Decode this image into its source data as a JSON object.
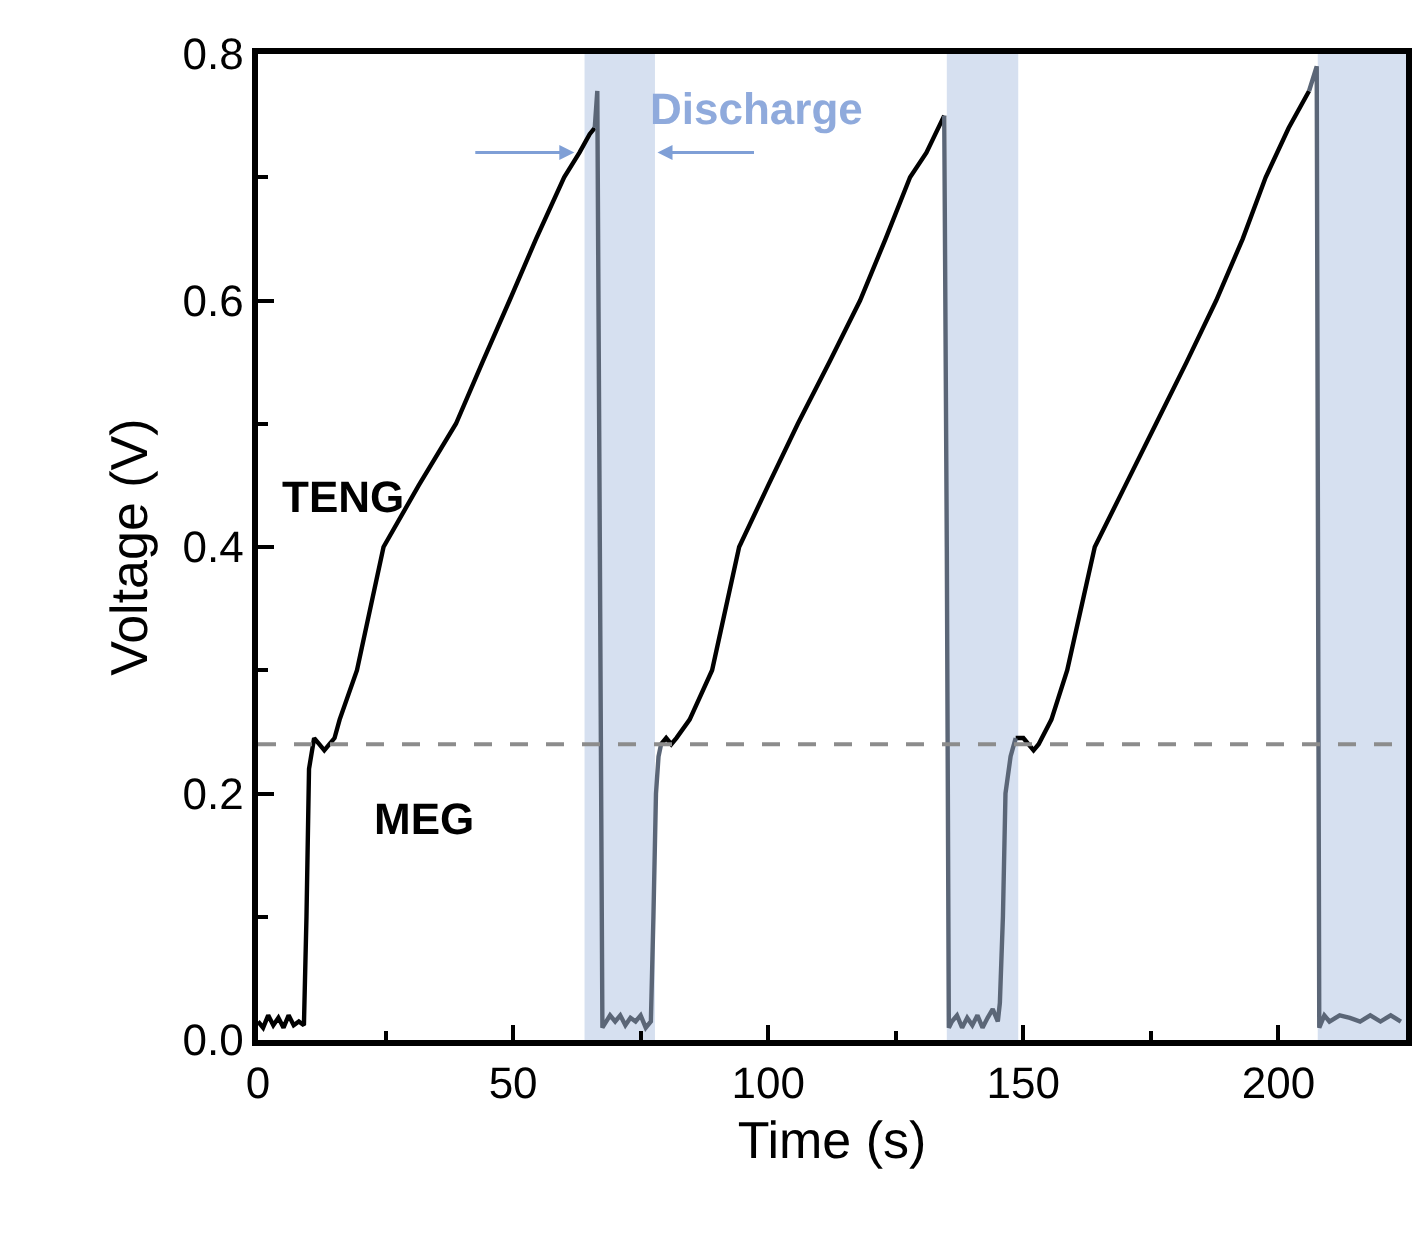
{
  "chart_data": {
    "type": "line",
    "xlabel": "Time (s)",
    "ylabel": "Voltage (V)",
    "xlim": [
      0,
      225
    ],
    "ylim": [
      0,
      0.8
    ],
    "xticks": [
      0,
      {
        "value": 25,
        "label": null
      },
      50,
      {
        "value": 75,
        "label": null
      },
      100,
      {
        "value": 125,
        "label": null
      },
      150,
      {
        "value": 175,
        "label": null
      },
      200
    ],
    "yticks": [
      {
        "value": 0,
        "label": "0.0"
      },
      {
        "value": 0.1,
        "label": null
      },
      0.2,
      {
        "value": 0.3,
        "label": null
      },
      0.4,
      {
        "value": 0.5,
        "label": null
      },
      0.6,
      {
        "value": 0.7,
        "label": null
      },
      0.8
    ],
    "series": [
      {
        "color": "#000000",
        "x": [
          0,
          1,
          2,
          3,
          4,
          5,
          6,
          7,
          8,
          9,
          9.5,
          10,
          11,
          12,
          13,
          14,
          15,
          16,
          19.4,
          24.6,
          31.5,
          38.8,
          44,
          49.3,
          54.5,
          60,
          63,
          65,
          66,
          72,
          79,
          80,
          81,
          82,
          84.6,
          89,
          94.3,
          100,
          105.8,
          112,
          118,
          123,
          127.8,
          131,
          134.5,
          141,
          148.5,
          150,
          151,
          152,
          153,
          155.5,
          158.6,
          164,
          170,
          176,
          182,
          187.8,
          193,
          197.5,
          202,
          206
        ],
        "values": [
          0.015,
          0.01,
          0.02,
          0.012,
          0.018,
          0.01,
          0.02,
          0.012,
          0.015,
          0.012,
          0.1,
          0.22,
          0.245,
          0.24,
          0.235,
          0.24,
          0.245,
          0.26,
          0.3,
          0.4,
          0.45,
          0.5,
          0.55,
          0.6,
          0.65,
          0.7,
          0.72,
          0.735,
          0.74,
          null,
          0.24,
          0.245,
          0.24,
          0.245,
          0.26,
          0.3,
          0.4,
          0.45,
          0.5,
          0.55,
          0.6,
          0.65,
          0.7,
          0.72,
          0.75,
          null,
          0.245,
          0.245,
          0.24,
          0.235,
          0.24,
          0.26,
          0.3,
          0.4,
          0.45,
          0.5,
          0.55,
          0.6,
          0.65,
          0.7,
          0.74,
          0.77
        ]
      },
      {
        "color": "#5b6677",
        "x": [
          66,
          66.5,
          67,
          67.5,
          69,
          70,
          71,
          72,
          73,
          74,
          75,
          76,
          77,
          77.5,
          78,
          78.5,
          79,
          100,
          134.5,
          135,
          135.4,
          136,
          137,
          138,
          139,
          140,
          141,
          142,
          143,
          144,
          145,
          145.4,
          146,
          146.5,
          147.5,
          148.5,
          175,
          206,
          207.5,
          208,
          209,
          210,
          212,
          214,
          216,
          218,
          220,
          222,
          224
        ],
        "values": [
          0.74,
          0.77,
          0.4,
          0.01,
          0.02,
          0.015,
          0.02,
          0.012,
          0.018,
          0.015,
          0.02,
          0.01,
          0.015,
          0.1,
          0.2,
          0.23,
          0.24,
          null,
          0.75,
          0.4,
          0.01,
          0.015,
          0.02,
          0.01,
          0.018,
          0.012,
          0.02,
          0.01,
          0.018,
          0.025,
          0.015,
          0.03,
          0.1,
          0.2,
          0.23,
          0.245,
          null,
          0.77,
          0.79,
          0.01,
          0.02,
          0.015,
          0.02,
          0.018,
          0.015,
          0.02,
          0.015,
          0.02,
          0.015
        ]
      }
    ],
    "ref_lines": [
      {
        "axis": "y",
        "value": 0.24,
        "color": "#8c8c8c",
        "line_style": "dashed"
      }
    ],
    "bands": [
      {
        "axis": "x",
        "from": 64,
        "to": 77.8,
        "label": "Discharge",
        "color": "#d6e0f0"
      },
      {
        "axis": "x",
        "from": 135,
        "to": 149,
        "color": "#d6e0f0"
      },
      {
        "axis": "x",
        "from": 207.7,
        "to": 225,
        "color": "#d6e0f0"
      }
    ],
    "annotations": [
      "TENG",
      "MEG"
    ],
    "grid": false,
    "marker": "none",
    "line_style": "solid"
  }
}
